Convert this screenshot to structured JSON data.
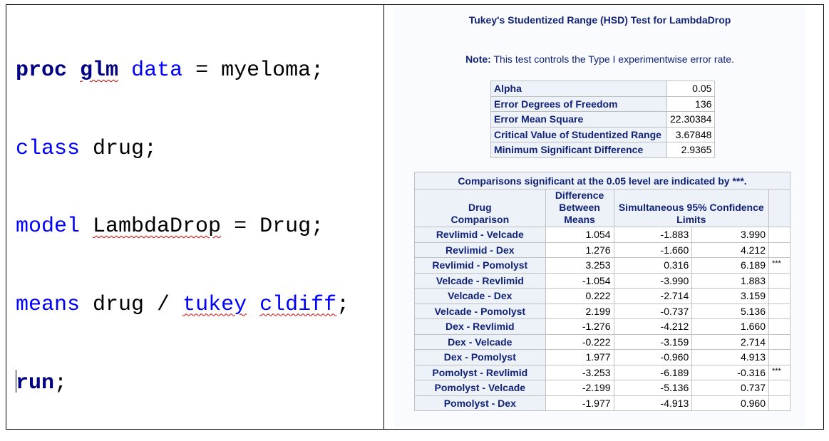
{
  "code": {
    "line1": {
      "kw1": "proc",
      "kw2": "glm",
      "kw3": "data",
      "rest": "= myeloma;"
    },
    "line2": {
      "kw": "class",
      "rest": "drug;"
    },
    "line3": {
      "kw": "model",
      "mid": "LambdaDrop",
      "rest": "= Drug;"
    },
    "line4": {
      "kw": "means",
      "mid": "drug /",
      "kw2": "tukey",
      "kw3": "cldiff",
      "rest": ";"
    },
    "line5": {
      "kw": "run",
      "rest": ";"
    }
  },
  "output": {
    "title": "Tukey's Studentized Range (HSD) Test for LambdaDrop",
    "note_label": "Note:",
    "note_text": "This test controls the Type I experimentwise error rate.",
    "stats": [
      {
        "label": "Alpha",
        "value": "0.05"
      },
      {
        "label": "Error Degrees of Freedom",
        "value": "136"
      },
      {
        "label": "Error Mean Square",
        "value": "22.30384"
      },
      {
        "label": "Critical Value of Studentized Range",
        "value": "3.67848"
      },
      {
        "label": "Minimum Significant Difference",
        "value": "2.9365"
      }
    ],
    "comparisons": {
      "caption": "Comparisons significant at the 0.05 level are indicated by ***.",
      "col_comparison": [
        "Drug",
        "Comparison"
      ],
      "col_difference": [
        "Difference",
        "Between",
        "Means"
      ],
      "col_limits": [
        "Simultaneous 95% Confidence",
        "Limits"
      ],
      "rows": [
        {
          "comparison": "Revlimid - Velcade",
          "diff": "1.054",
          "lower": "-1.883",
          "upper": "3.990",
          "sig": ""
        },
        {
          "comparison": "Revlimid - Dex",
          "diff": "1.276",
          "lower": "-1.660",
          "upper": "4.212",
          "sig": ""
        },
        {
          "comparison": "Revlimid - Pomolyst",
          "diff": "3.253",
          "lower": "0.316",
          "upper": "6.189",
          "sig": "***"
        },
        {
          "comparison": "Velcade - Revlimid",
          "diff": "-1.054",
          "lower": "-3.990",
          "upper": "1.883",
          "sig": ""
        },
        {
          "comparison": "Velcade - Dex",
          "diff": "0.222",
          "lower": "-2.714",
          "upper": "3.159",
          "sig": ""
        },
        {
          "comparison": "Velcade - Pomolyst",
          "diff": "2.199",
          "lower": "-0.737",
          "upper": "5.136",
          "sig": ""
        },
        {
          "comparison": "Dex - Revlimid",
          "diff": "-1.276",
          "lower": "-4.212",
          "upper": "1.660",
          "sig": ""
        },
        {
          "comparison": "Dex - Velcade",
          "diff": "-0.222",
          "lower": "-3.159",
          "upper": "2.714",
          "sig": ""
        },
        {
          "comparison": "Dex - Pomolyst",
          "diff": "1.977",
          "lower": "-0.960",
          "upper": "4.913",
          "sig": ""
        },
        {
          "comparison": "Pomolyst - Revlimid",
          "diff": "-3.253",
          "lower": "-6.189",
          "upper": "-0.316",
          "sig": "***"
        },
        {
          "comparison": "Pomolyst - Velcade",
          "diff": "-2.199",
          "lower": "-5.136",
          "upper": "0.737",
          "sig": ""
        },
        {
          "comparison": "Pomolyst - Dex",
          "diff": "-1.977",
          "lower": "-4.913",
          "upper": "0.960",
          "sig": ""
        }
      ]
    }
  },
  "colors": {
    "sas_keyword_bold": "#000080",
    "sas_keyword": "#0000ff",
    "output_header_text": "#112277",
    "output_header_bg": "#edf2f9",
    "spell_squiggle": "#c00000"
  }
}
